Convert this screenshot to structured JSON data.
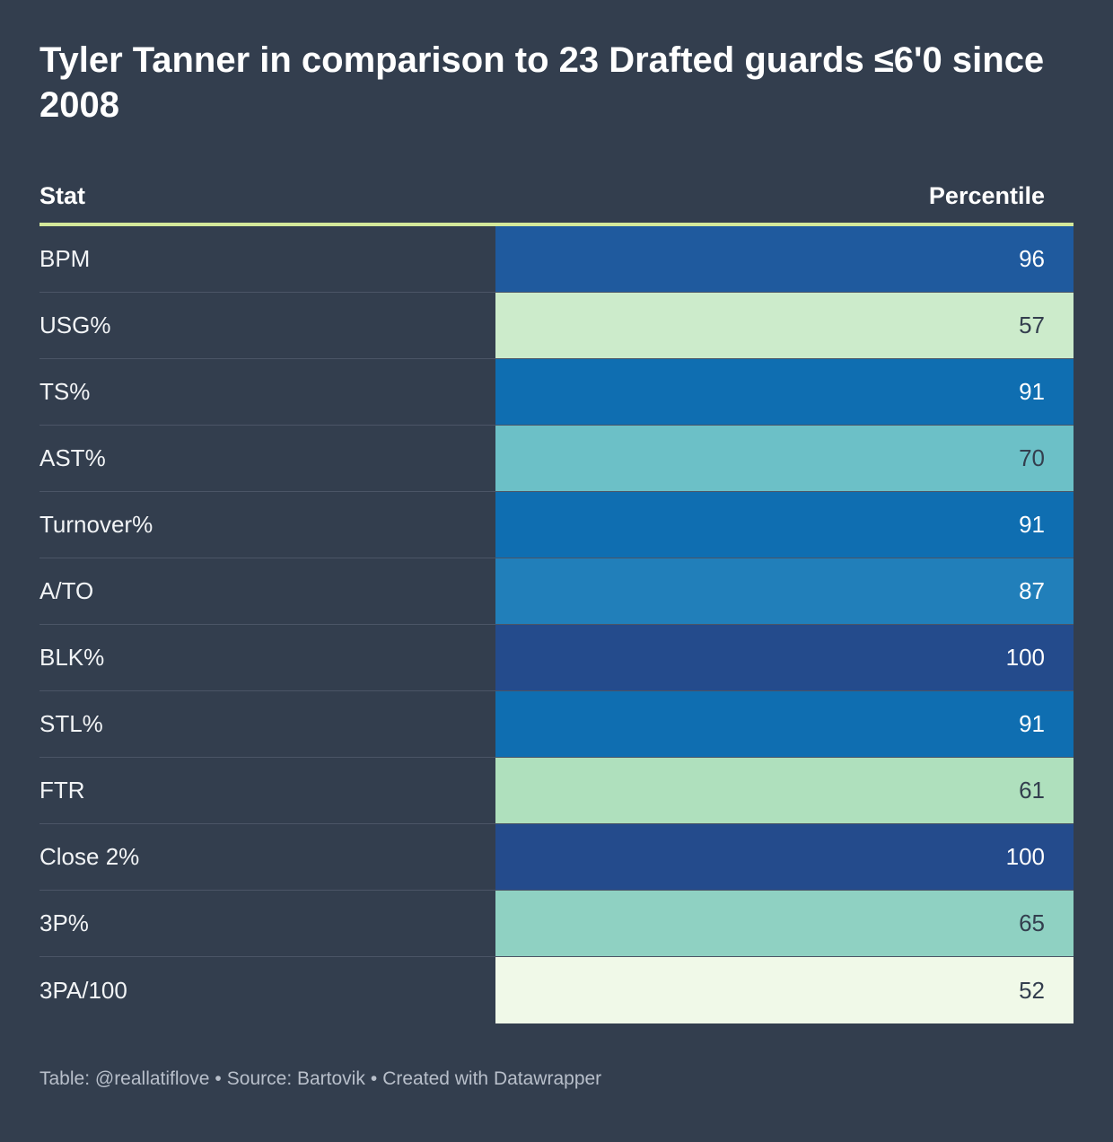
{
  "chart_data": {
    "type": "table",
    "title": "Tyler Tanner in comparison to 23 Drafted guards ≤6'0 since 2008",
    "columns": [
      "Stat",
      "Percentile"
    ],
    "rows": [
      {
        "stat": "BPM",
        "value": 96
      },
      {
        "stat": "USG%",
        "value": 57
      },
      {
        "stat": "TS%",
        "value": 91
      },
      {
        "stat": "AST%",
        "value": 70
      },
      {
        "stat": "Turnover%",
        "value": 91
      },
      {
        "stat": "A/TO",
        "value": 87
      },
      {
        "stat": "BLK%",
        "value": 100
      },
      {
        "stat": "STL%",
        "value": 91
      },
      {
        "stat": "FTR",
        "value": 61
      },
      {
        "stat": "Close 2%",
        "value": 100
      },
      {
        "stat": "3P%",
        "value": 65
      },
      {
        "stat": "3PA/100",
        "value": 52
      }
    ],
    "color_scale": {
      "stops": [
        {
          "value": 52,
          "color": "#f0f9e8"
        },
        {
          "value": 57,
          "color": "#ccebcb"
        },
        {
          "value": 61,
          "color": "#afe0bd"
        },
        {
          "value": 65,
          "color": "#8fd1c2"
        },
        {
          "value": 70,
          "color": "#6cc0c7"
        },
        {
          "value": 87,
          "color": "#217fba"
        },
        {
          "value": 91,
          "color": "#0f6eb1"
        },
        {
          "value": 96,
          "color": "#1f5a9e"
        },
        {
          "value": 100,
          "color": "#244b8c"
        }
      ],
      "dark_text_below": 75,
      "dark_text": "#333e4e",
      "light_text": "#ffffff"
    }
  },
  "footer": {
    "table_credit": "Table: @reallatiflove",
    "source": "Source: Bartovik",
    "created": "Created with Datawrapper",
    "separator": "•"
  }
}
